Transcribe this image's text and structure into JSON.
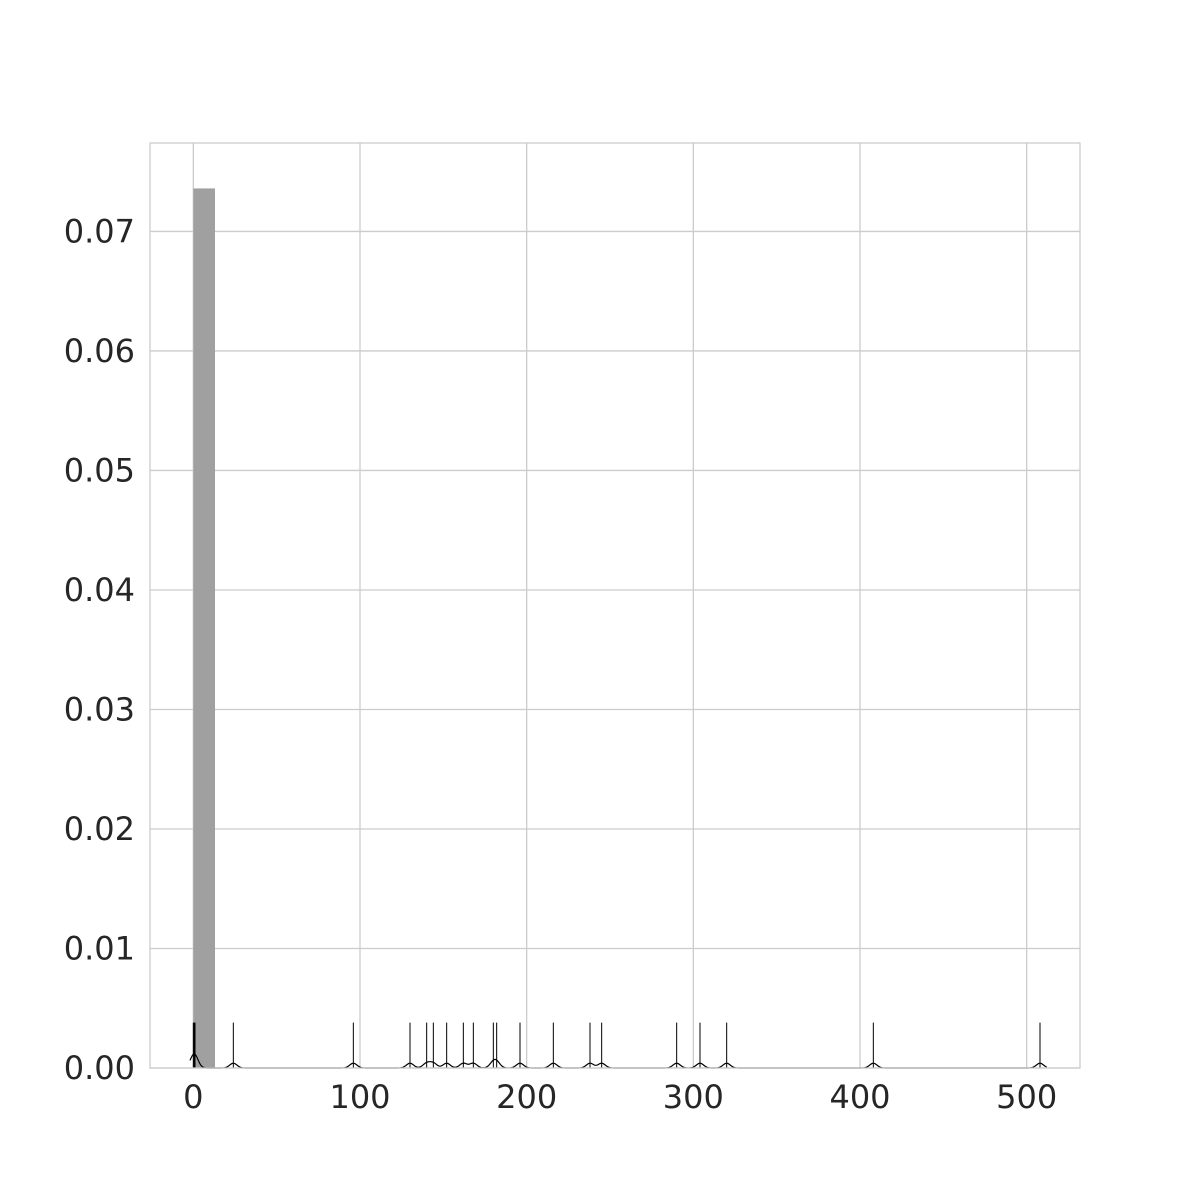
{
  "chart_data": {
    "type": "histogram",
    "title": "",
    "xlabel": "",
    "ylabel": "",
    "xlim": [
      -26,
      532
    ],
    "ylim": [
      0,
      0.0774
    ],
    "grid": true,
    "legend": "none",
    "colors": {
      "bar": "#a0a0a0",
      "rug": "#000000",
      "kde": "#000000",
      "grid": "#cccccc",
      "text": "#262626"
    },
    "x_ticks": [
      {
        "value": 0,
        "label": "0"
      },
      {
        "value": 100,
        "label": "100"
      },
      {
        "value": 200,
        "label": "200"
      },
      {
        "value": 300,
        "label": "300"
      },
      {
        "value": 400,
        "label": "400"
      },
      {
        "value": 500,
        "label": "500"
      }
    ],
    "y_ticks": [
      {
        "value": 0,
        "label": "0.00"
      },
      {
        "value": 0.01,
        "label": "0.01"
      },
      {
        "value": 0.02,
        "label": "0.02"
      },
      {
        "value": 0.03,
        "label": "0.03"
      },
      {
        "value": 0.04,
        "label": "0.04"
      },
      {
        "value": 0.05,
        "label": "0.05"
      },
      {
        "value": 0.06,
        "label": "0.06"
      },
      {
        "value": 0.07,
        "label": "0.07"
      }
    ],
    "bars": [
      {
        "x0": 0,
        "x1": 13,
        "density": 0.0736
      }
    ],
    "rug": [
      0,
      0.5,
      1,
      24,
      96,
      130,
      140,
      144,
      152,
      162,
      168,
      180,
      182,
      196,
      216,
      238,
      245,
      290,
      304,
      320,
      408,
      508
    ],
    "kde_peak_density": 0.0008
  }
}
